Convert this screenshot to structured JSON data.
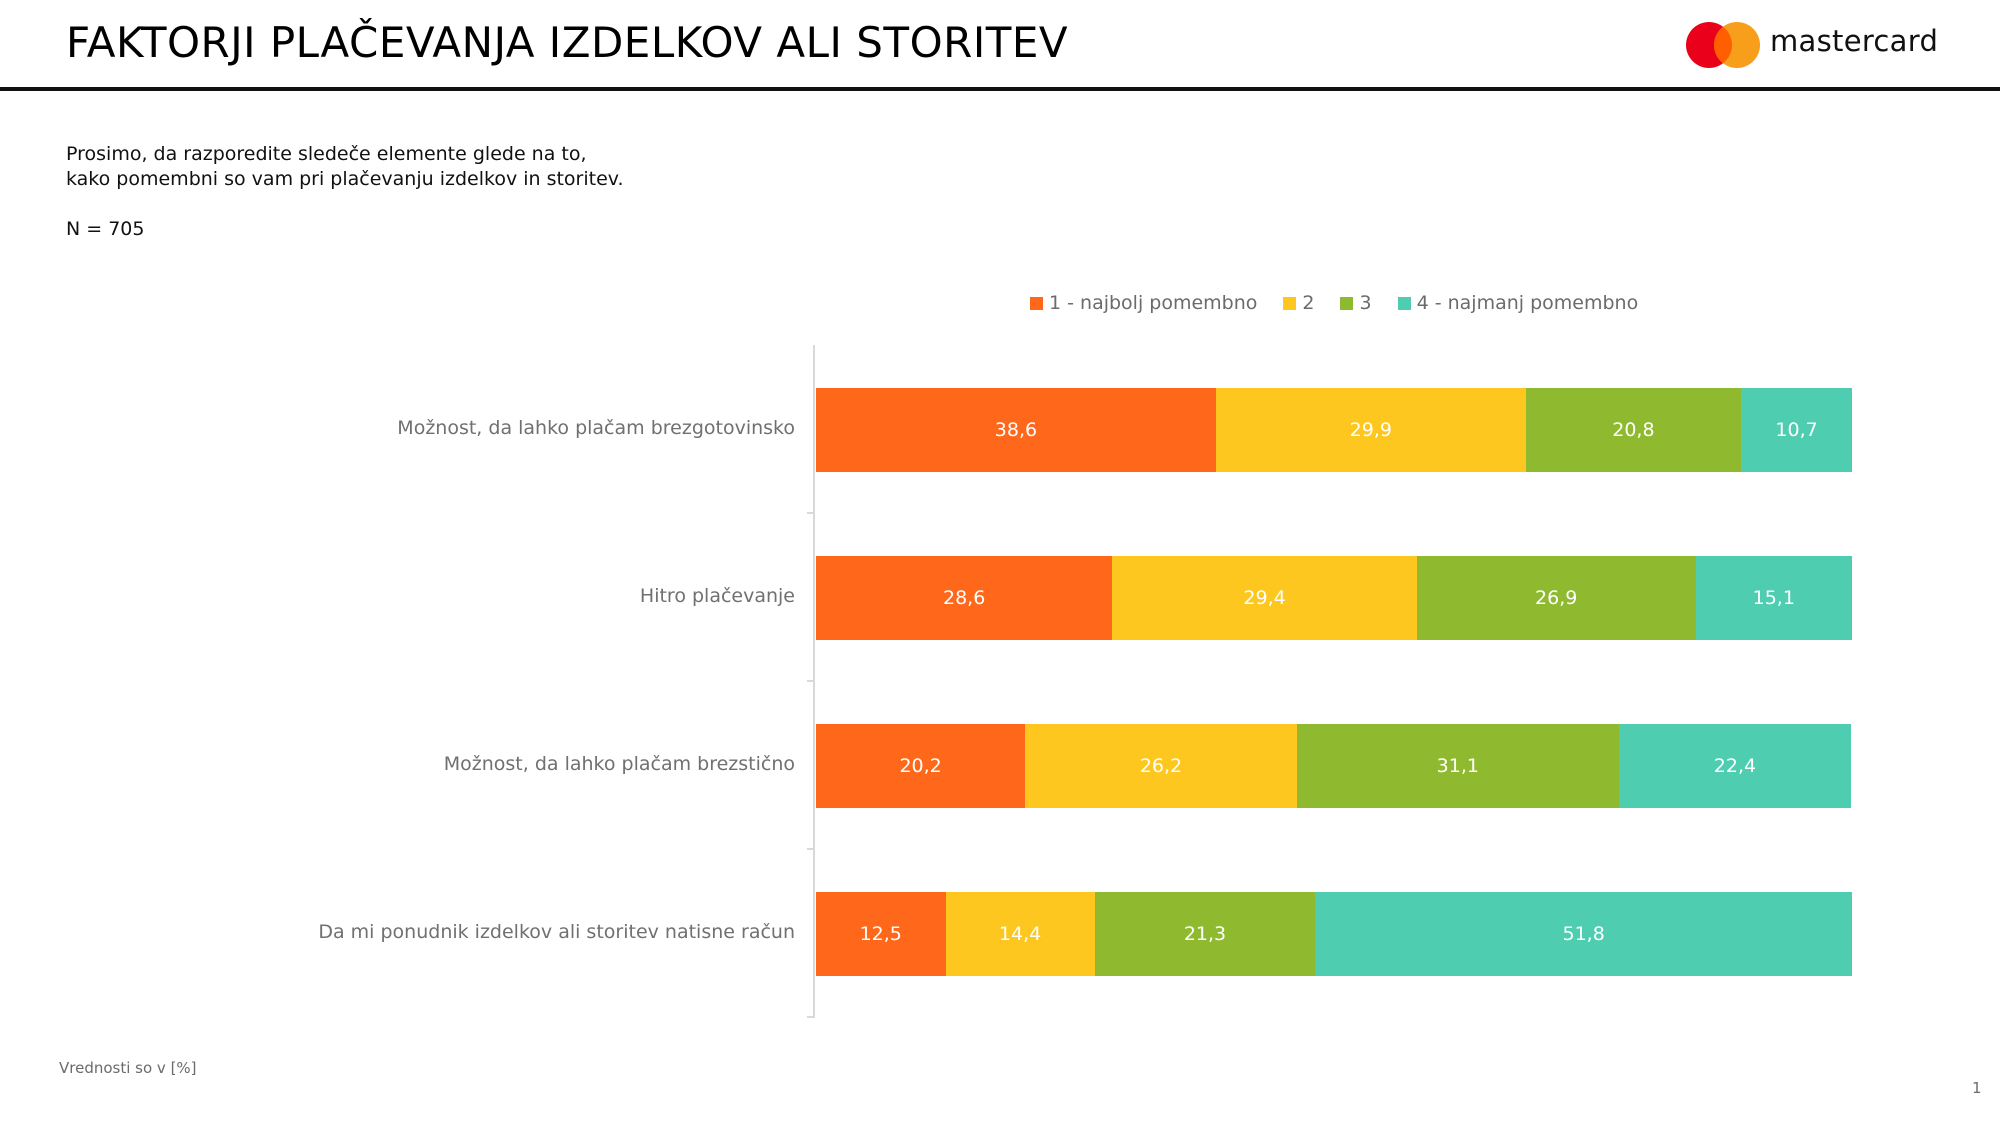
{
  "header": {
    "title": "FAKTORJI PLAČEVANJA IZDELKOV ALI STORITEV",
    "logo_text": "mastercard"
  },
  "intro": {
    "question_line1": "Prosimo, da razporedite sledeče elemente glede na to,",
    "question_line2": "kako pomembni so vam pri plačevanju izdelkov in storitev.",
    "sample_size": "N = 705"
  },
  "footer": {
    "note": "Vrednosti so v [%]",
    "page_number": "1"
  },
  "chart_data": {
    "type": "bar",
    "orientation": "horizontal",
    "stacked": true,
    "title": "",
    "xlabel": "",
    "ylabel": "",
    "xlim": [
      0,
      100
    ],
    "grid": false,
    "legend_position": "top-right",
    "categories": [
      "Možnost, da lahko plačam brezgotovinsko",
      "Hitro plačevanje",
      "Možnost, da lahko plačam brezstično",
      "Da mi ponudnik izdelkov ali storitev natisne račun"
    ],
    "series": [
      {
        "name": "1 - najbolj pomembno",
        "color": "#ff671b",
        "values": [
          38.6,
          28.6,
          20.2,
          12.5
        ],
        "labels": [
          "38,6",
          "28,6",
          "20,2",
          "12,5"
        ]
      },
      {
        "name": "2",
        "color": "#fdc71f",
        "values": [
          29.9,
          29.4,
          26.2,
          14.4
        ],
        "labels": [
          "29,9",
          "29,4",
          "26,2",
          "14,4"
        ]
      },
      {
        "name": "3",
        "color": "#8fba2f",
        "values": [
          20.8,
          26.9,
          31.1,
          21.3
        ],
        "labels": [
          "20,8",
          "26,9",
          "31,1",
          "21,3"
        ]
      },
      {
        "name": "4 - najmanj pomembno",
        "color": "#4ecdb0",
        "values": [
          10.7,
          15.1,
          22.4,
          51.8
        ],
        "labels": [
          "10,7",
          "15,1",
          "22,4",
          "51,8"
        ]
      }
    ]
  }
}
